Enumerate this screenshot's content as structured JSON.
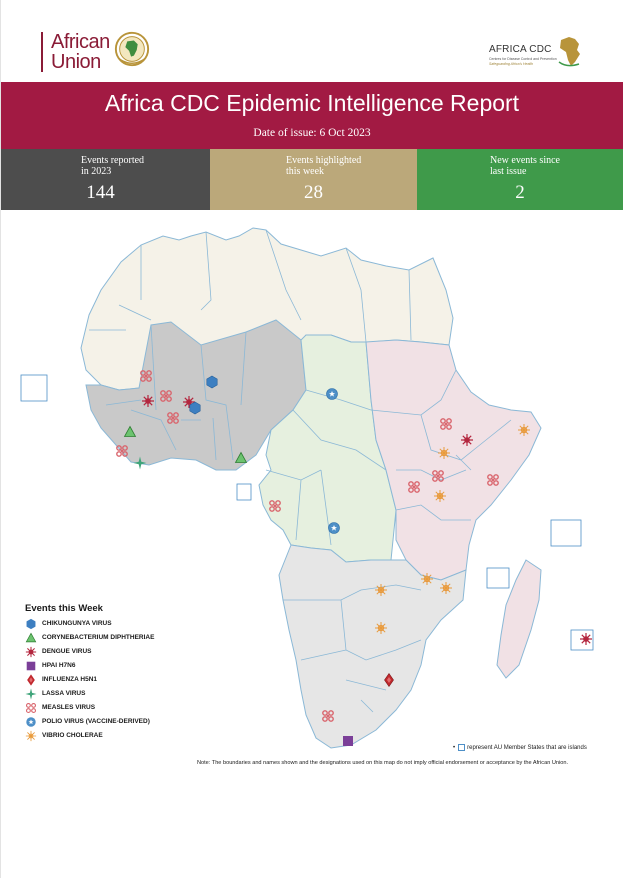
{
  "header": {
    "au_logo_text_line1": "African",
    "au_logo_text_line2": "Union",
    "cdc_logo_title": "AFRICA CDC",
    "cdc_logo_sub": "Centres for Disease Control and Prevention",
    "cdc_logo_tagline": "Safeguarding Africa's Health"
  },
  "banner": {
    "title": "Africa CDC Epidemic Intelligence Report",
    "date": "Date of issue: 6 Oct 2023"
  },
  "stats": [
    {
      "label_line1": "Events reported",
      "label_line2": "in 2023",
      "value": "144",
      "color": "#4d4d4d"
    },
    {
      "label_line1": "Events highlighted",
      "label_line2": "this week",
      "value": "28",
      "color": "#bba87a"
    },
    {
      "label_line1": "New events since",
      "label_line2": "last issue",
      "value": "2",
      "color": "#3f9a4a"
    }
  ],
  "legend": {
    "title": "Events this Week",
    "items": [
      {
        "label": "CHIKUNGUNYA VIRUS",
        "icon": "hexagon-icon",
        "color": "#3d7fc1"
      },
      {
        "label": "CORYNEBACTERIUM DIPHTHERIAE",
        "icon": "triangle-icon",
        "color": "#4caf50"
      },
      {
        "label": "DENGUE VIRUS",
        "icon": "virus-icon",
        "color": "#b3263e"
      },
      {
        "label": "HPAI H7N6",
        "icon": "square-icon",
        "color": "#7b3f98"
      },
      {
        "label": "INFLUENZA H5N1",
        "icon": "diamond-icon",
        "color": "#c0282d"
      },
      {
        "label": "LASSA VIRUS",
        "icon": "star-icon",
        "color": "#3fa47a"
      },
      {
        "label": "MEASLES VIRUS",
        "icon": "measles-icon",
        "color": "#d9646c"
      },
      {
        "label": "POLIO VIRUS (VACCINE-DERIVED)",
        "icon": "polio-icon",
        "color": "#4d8fc7"
      },
      {
        "label": "VIBRIO CHOLERAE",
        "icon": "burst-icon",
        "color": "#e89a3c"
      }
    ]
  },
  "map": {
    "region_colors": {
      "north": "#f5f2e8",
      "west": "#c9c9c9",
      "central": "#e6f0df",
      "east": "#f1e1e5",
      "south": "#e6e6e6"
    }
  },
  "footer": {
    "islands_note": "represent AU Member States that are islands",
    "disclaimer": "Note: The boundaries and names shown and the designations used on this map do not imply official endorsement or acceptance by the African Union."
  }
}
